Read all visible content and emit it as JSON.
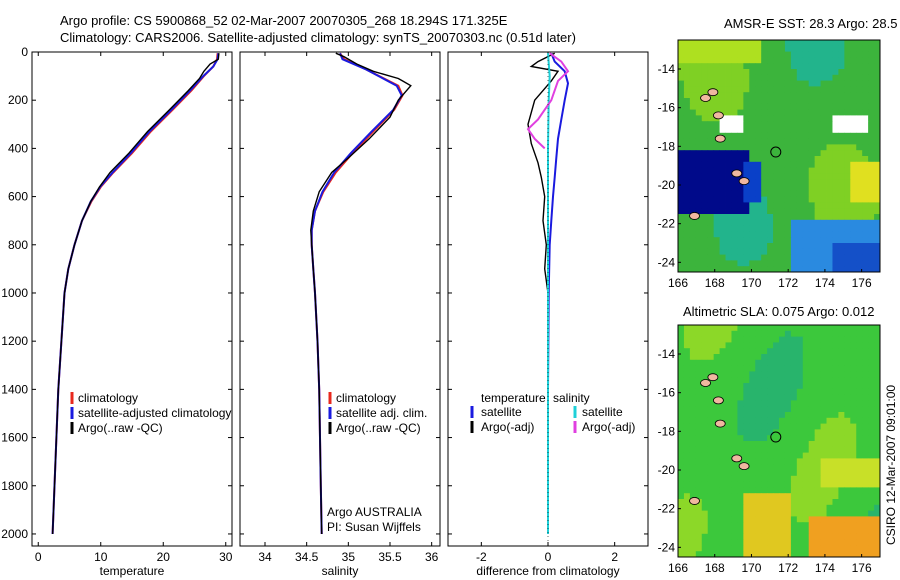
{
  "header": {
    "title_line1": "Argo profile: CS 5900868_52 02-Mar-2007 20070305_268 18.294S 171.325E",
    "title_line2": "Climatology: CARS2006. Satellite-adjusted climatology: synTS_20070303.nc (0.51d later)"
  },
  "footer_stamp": "CSIRO 12-Mar-2007 09:01:00",
  "colors": {
    "climatology": "#e8281e",
    "satellite": "#1a1adf",
    "argo": "#000000",
    "satellite_diff_salinity": "#1fd0d8",
    "argo_diff_salinity": "#e040e0"
  },
  "chart_data": [
    {
      "type": "line",
      "xlabel": "temperature",
      "ylabel": "",
      "ylim": [
        0,
        2050
      ],
      "yreversed": true,
      "xlim": [
        -1,
        31
      ],
      "xticks": [
        "0",
        "10",
        "20",
        "30"
      ],
      "yticks": [
        "0",
        "200",
        "400",
        "600",
        "800",
        "1000",
        "1200",
        "1400",
        "1600",
        "1800",
        "2000"
      ],
      "legend": [
        "climatology",
        "satellite-adjusted climatology",
        "Argo(..raw -QC)"
      ],
      "series": [
        {
          "name": "climatology",
          "color_key": "climatology",
          "points": [
            [
              28.7,
              5
            ],
            [
              28.6,
              30
            ],
            [
              28,
              60
            ],
            [
              26.5,
              100
            ],
            [
              24.5,
              160
            ],
            [
              21.5,
              240
            ],
            [
              18,
              330
            ],
            [
              15,
              420
            ],
            [
              12,
              500
            ],
            [
              10,
              560
            ],
            [
              8.5,
              620
            ],
            [
              7,
              700
            ],
            [
              5.8,
              800
            ],
            [
              4.8,
              900
            ],
            [
              4.2,
              1000
            ],
            [
              3.7,
              1200
            ],
            [
              3.2,
              1400
            ],
            [
              2.9,
              1600
            ],
            [
              2.6,
              1800
            ],
            [
              2.3,
              2000
            ]
          ]
        },
        {
          "name": "satellite-adjusted climatology",
          "color_key": "satellite",
          "points": [
            [
              28.8,
              5
            ],
            [
              28.7,
              30
            ],
            [
              28,
              60
            ],
            [
              26.4,
              100
            ],
            [
              24.3,
              160
            ],
            [
              21.3,
              240
            ],
            [
              17.8,
              330
            ],
            [
              14.8,
              420
            ],
            [
              11.9,
              500
            ],
            [
              9.9,
              560
            ],
            [
              8.4,
              620
            ],
            [
              7,
              700
            ],
            [
              5.8,
              800
            ],
            [
              4.8,
              900
            ],
            [
              4.2,
              1000
            ],
            [
              3.7,
              1200
            ],
            [
              3.2,
              1400
            ],
            [
              2.9,
              1600
            ],
            [
              2.6,
              1800
            ],
            [
              2.3,
              2000
            ]
          ]
        },
        {
          "name": "Argo(..raw -QC)",
          "color_key": "argo",
          "points": [
            [
              28.9,
              5
            ],
            [
              28.8,
              30
            ],
            [
              27.5,
              50
            ],
            [
              26.5,
              80
            ],
            [
              25.8,
              110
            ],
            [
              24,
              160
            ],
            [
              21,
              240
            ],
            [
              17.5,
              330
            ],
            [
              14.5,
              420
            ],
            [
              11.5,
              500
            ],
            [
              9.8,
              560
            ],
            [
              8.4,
              620
            ],
            [
              7,
              700
            ],
            [
              5.8,
              800
            ],
            [
              4.8,
              900
            ],
            [
              4.2,
              1000
            ],
            [
              3.7,
              1200
            ],
            [
              3.2,
              1400
            ],
            [
              2.9,
              1600
            ],
            [
              2.6,
              1800
            ],
            [
              2.3,
              2000
            ]
          ]
        }
      ]
    },
    {
      "type": "line",
      "xlabel": "salinity",
      "ylabel": "",
      "ylim": [
        0,
        2050
      ],
      "yreversed": true,
      "xlim": [
        33.7,
        36.1
      ],
      "xticks": [
        "34",
        "34.5",
        "35",
        "35.5",
        "36"
      ],
      "legend": [
        "climatology",
        "satellite adj. clim.",
        "Argo(..raw -QC)"
      ],
      "annotation": [
        "Argo AUSTRALIA",
        "PI: Susan Wijffels"
      ],
      "series": [
        {
          "name": "climatology",
          "color_key": "climatology",
          "points": [
            [
              34.9,
              5
            ],
            [
              34.95,
              30
            ],
            [
              35.2,
              70
            ],
            [
              35.6,
              140
            ],
            [
              35.65,
              180
            ],
            [
              35.55,
              240
            ],
            [
              35.3,
              330
            ],
            [
              35.05,
              420
            ],
            [
              34.85,
              500
            ],
            [
              34.7,
              580
            ],
            [
              34.6,
              660
            ],
            [
              34.56,
              740
            ],
            [
              34.56,
              800
            ],
            [
              34.58,
              900
            ],
            [
              34.6,
              1000
            ],
            [
              34.63,
              1200
            ],
            [
              34.65,
              1400
            ],
            [
              34.66,
              1600
            ],
            [
              34.67,
              1800
            ],
            [
              34.68,
              2000
            ]
          ]
        },
        {
          "name": "satellite adj. clim.",
          "color_key": "satellite",
          "points": [
            [
              34.9,
              5
            ],
            [
              34.93,
              30
            ],
            [
              35.2,
              70
            ],
            [
              35.58,
              140
            ],
            [
              35.64,
              180
            ],
            [
              35.54,
              240
            ],
            [
              35.28,
              330
            ],
            [
              35.03,
              420
            ],
            [
              34.83,
              500
            ],
            [
              34.69,
              580
            ],
            [
              34.6,
              660
            ],
            [
              34.56,
              740
            ],
            [
              34.56,
              800
            ],
            [
              34.58,
              900
            ],
            [
              34.6,
              1000
            ],
            [
              34.63,
              1200
            ],
            [
              34.65,
              1400
            ],
            [
              34.66,
              1600
            ],
            [
              34.67,
              1800
            ],
            [
              34.68,
              2000
            ]
          ]
        },
        {
          "name": "Argo(..raw -QC)",
          "color_key": "argo",
          "points": [
            [
              34.85,
              5
            ],
            [
              34.95,
              20
            ],
            [
              35.1,
              50
            ],
            [
              35.3,
              80
            ],
            [
              35.6,
              110
            ],
            [
              35.65,
              120
            ],
            [
              35.75,
              140
            ],
            [
              35.6,
              200
            ],
            [
              35.5,
              270
            ],
            [
              35.25,
              360
            ],
            [
              35,
              440
            ],
            [
              34.8,
              500
            ],
            [
              34.65,
              580
            ],
            [
              34.58,
              660
            ],
            [
              34.55,
              740
            ],
            [
              34.56,
              800
            ],
            [
              34.58,
              900
            ],
            [
              34.6,
              1000
            ],
            [
              34.63,
              1200
            ],
            [
              34.65,
              1400
            ],
            [
              34.66,
              1600
            ],
            [
              34.67,
              1800
            ],
            [
              34.68,
              2000
            ]
          ]
        }
      ]
    },
    {
      "type": "line",
      "xlabel": "difference from climatology",
      "ylabel": "",
      "ylim": [
        0,
        2050
      ],
      "yreversed": true,
      "xlim": [
        -3,
        3
      ],
      "xticks": [
        "-2",
        "0",
        "2"
      ],
      "legend_left_title": "temperature",
      "legend_right_title": "salinity",
      "legend_left": [
        "satellite",
        "Argo(-adj)"
      ],
      "legend_right": [
        "satellite",
        "Argo(-adj)"
      ],
      "series": [
        {
          "name": "temperature satellite",
          "color_key": "satellite",
          "points": [
            [
              0.1,
              5
            ],
            [
              0.2,
              40
            ],
            [
              0.5,
              80
            ],
            [
              0.6,
              130
            ],
            [
              0.5,
              200
            ],
            [
              0.4,
              280
            ],
            [
              0.3,
              360
            ],
            [
              0.25,
              440
            ],
            [
              0.2,
              520
            ],
            [
              0.15,
              600
            ],
            [
              0.1,
              700
            ],
            [
              0.05,
              800
            ],
            [
              0.02,
              1000
            ],
            [
              0,
              1400
            ],
            [
              0,
              2000
            ]
          ]
        },
        {
          "name": "temperature Argo(-adj)",
          "color_key": "argo",
          "points": [
            [
              0.2,
              5
            ],
            [
              -0.3,
              40
            ],
            [
              -0.5,
              60
            ],
            [
              0.3,
              80
            ],
            [
              0.1,
              120
            ],
            [
              -0.4,
              200
            ],
            [
              -0.6,
              300
            ],
            [
              -0.5,
              380
            ],
            [
              -0.3,
              460
            ],
            [
              -0.2,
              520
            ],
            [
              -0.1,
              600
            ],
            [
              -0.15,
              700
            ],
            [
              -0.05,
              800
            ],
            [
              -0.1,
              900
            ],
            [
              0,
              1000
            ],
            [
              0,
              1400
            ],
            [
              0,
              2000
            ]
          ]
        },
        {
          "name": "salinity satellite",
          "color_key": "satellite_diff_salinity",
          "points": [
            [
              0,
              5
            ],
            [
              0.05,
              100
            ],
            [
              0.02,
              200
            ],
            [
              0,
              400
            ],
            [
              0,
              800
            ],
            [
              0,
              2000
            ]
          ]
        },
        {
          "name": "salinity Argo(-adj)",
          "color_key": "argo_diff_salinity",
          "points": [
            [
              0.05,
              5
            ],
            [
              0.4,
              40
            ],
            [
              0.6,
              80
            ],
            [
              0.3,
              120
            ],
            [
              0.1,
              200
            ],
            [
              -0.3,
              280
            ],
            [
              -0.6,
              320
            ],
            [
              -0.4,
              360
            ],
            [
              -0.1,
              400
            ]
          ]
        }
      ]
    },
    {
      "type": "heatmap",
      "title": "AMSR-E SST: 28.3 Argo: 28.5",
      "xlim": [
        166,
        177
      ],
      "ylim": [
        -24.5,
        -12.5
      ],
      "xticks": [
        "166",
        "168",
        "170",
        "172",
        "174",
        "176"
      ],
      "yticks": [
        "-14",
        "-16",
        "-18",
        "-20",
        "-22",
        "-24"
      ],
      "marker": [
        171.325,
        -18.294
      ]
    },
    {
      "type": "heatmap",
      "title": "Altimetric SLA: 0.075 Argo: 0.012",
      "xlim": [
        166,
        177
      ],
      "ylim": [
        -24.5,
        -12.5
      ],
      "xticks": [
        "166",
        "168",
        "170",
        "172",
        "174",
        "176"
      ],
      "yticks": [
        "-14",
        "-16",
        "-18",
        "-20",
        "-22",
        "-24"
      ],
      "marker": [
        171.325,
        -18.294
      ]
    }
  ]
}
